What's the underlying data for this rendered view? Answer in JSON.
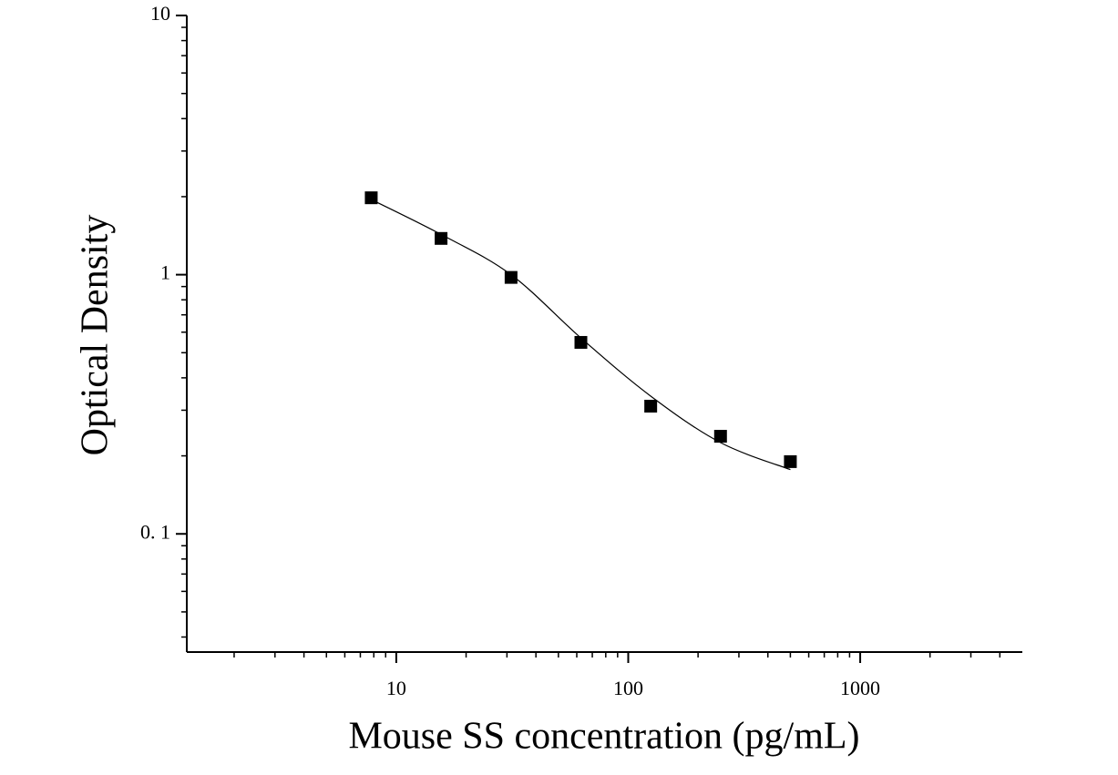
{
  "chart_data": {
    "type": "scatter",
    "x_label": "Mouse SS concentration (pg/mL)",
    "y_label": "Optical Density",
    "xscale": "log",
    "yscale": "log",
    "xlim": [
      1.25,
      5000
    ],
    "ylim": [
      0.035,
      10
    ],
    "xticks": [
      10,
      100,
      1000
    ],
    "yticks": [
      {
        "value": 0.1,
        "label": "0. 1"
      },
      1,
      10
    ],
    "series": [
      {
        "color": "#000000",
        "marker": "square",
        "x": [
          7.8,
          15.6,
          31.25,
          62.5,
          125,
          250,
          500
        ],
        "values": [
          1.98,
          1.38,
          0.976,
          0.548,
          0.311,
          0.238,
          0.19
        ]
      },
      {
        "color": "#000000",
        "marker": "line",
        "x": [
          7.8,
          15.6,
          31.25,
          62.5,
          125,
          250,
          500
        ],
        "values": [
          1.95,
          1.43,
          1.0,
          0.57,
          0.34,
          0.225,
          0.177
        ]
      }
    ]
  }
}
